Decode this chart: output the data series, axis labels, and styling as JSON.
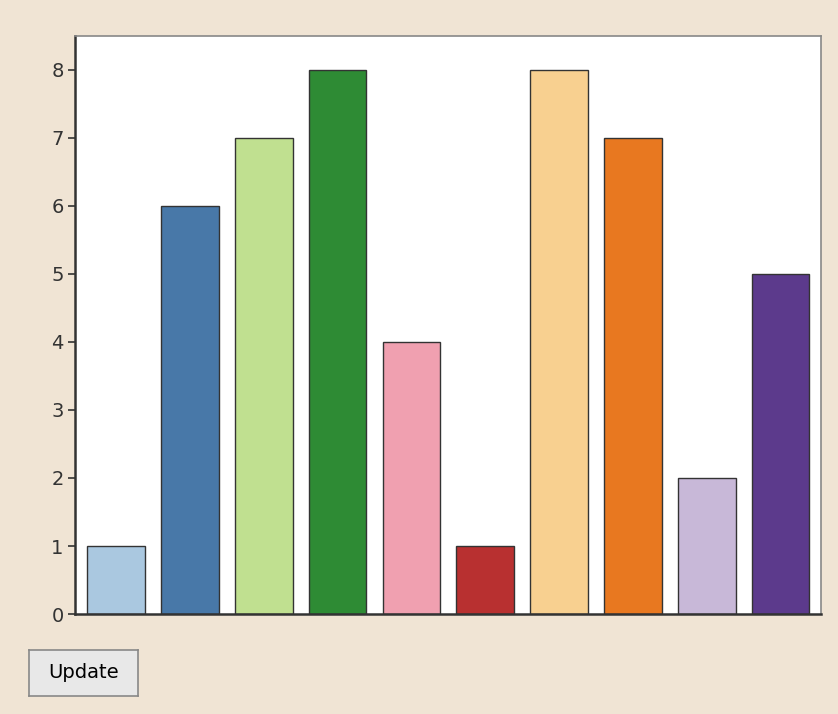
{
  "values": [
    1,
    6,
    7,
    8,
    4,
    1,
    8,
    7,
    2,
    5
  ],
  "bar_colors": [
    "#aac8e0",
    "#4878a8",
    "#c0e090",
    "#2e8b34",
    "#f0a0b0",
    "#b83030",
    "#f8d090",
    "#e87820",
    "#c8b8d8",
    "#5c3a8c"
  ],
  "bar_edge_color": "#333333",
  "bar_edge_width": 1.0,
  "ylim": [
    0,
    8.5
  ],
  "yticks": [
    0,
    1,
    2,
    3,
    4,
    5,
    6,
    7,
    8
  ],
  "outer_background": "#f0e4d4",
  "chart_area_bgcolor": "#ffffff",
  "bar_width": 0.78,
  "figsize": [
    8.38,
    7.14
  ],
  "dpi": 100,
  "tick_fontsize": 14,
  "button_label": "Update",
  "chart_border_color": "#888888",
  "axis_color": "#333333"
}
